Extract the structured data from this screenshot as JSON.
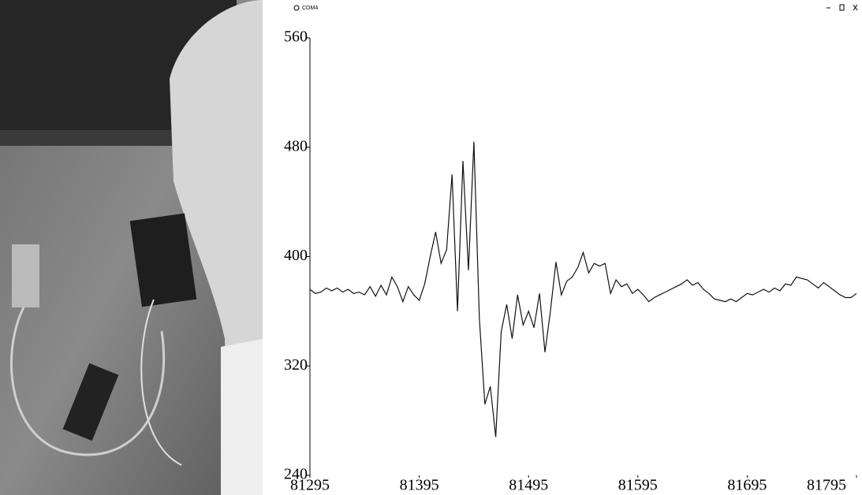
{
  "window": {
    "title": "COM4"
  },
  "chart_data": {
    "type": "line",
    "color": "#111111",
    "x": [
      81295,
      81300,
      81305,
      81310,
      81315,
      81320,
      81325,
      81330,
      81335,
      81340,
      81345,
      81350,
      81355,
      81360,
      81365,
      81370,
      81375,
      81380,
      81385,
      81390,
      81395,
      81400,
      81405,
      81410,
      81415,
      81420,
      81425,
      81430,
      81435,
      81440,
      81445,
      81450,
      81455,
      81460,
      81465,
      81470,
      81475,
      81480,
      81485,
      81490,
      81495,
      81500,
      81505,
      81510,
      81515,
      81520,
      81525,
      81530,
      81535,
      81540,
      81545,
      81550,
      81555,
      81560,
      81565,
      81570,
      81575,
      81580,
      81585,
      81590,
      81595,
      81600,
      81605,
      81610,
      81615,
      81620,
      81625,
      81630,
      81635,
      81640,
      81645,
      81650,
      81655,
      81660,
      81665,
      81670,
      81675,
      81680,
      81685,
      81690,
      81695,
      81700,
      81705,
      81710,
      81715,
      81720,
      81725,
      81730,
      81735,
      81740,
      81745,
      81750,
      81755,
      81760,
      81765,
      81770,
      81775,
      81780,
      81785,
      81790,
      81795
    ],
    "values": [
      376,
      373,
      374,
      377,
      375,
      377,
      374,
      376,
      373,
      374,
      372,
      378,
      371,
      379,
      372,
      385,
      378,
      367,
      378,
      372,
      368,
      380,
      400,
      418,
      395,
      405,
      460,
      360,
      470,
      390,
      484,
      355,
      292,
      305,
      268,
      345,
      365,
      340,
      372,
      350,
      360,
      348,
      373,
      330,
      360,
      396,
      372,
      382,
      385,
      392,
      403,
      388,
      395,
      393,
      395,
      373,
      383,
      378,
      380,
      373,
      376,
      372,
      367,
      370,
      372,
      374,
      376,
      378,
      380,
      383,
      379,
      381,
      376,
      373,
      369,
      368,
      367,
      369,
      367,
      370,
      373,
      372,
      374,
      376,
      374,
      377,
      375,
      380,
      379,
      385,
      384,
      383,
      380,
      377,
      381,
      378,
      375,
      372,
      370,
      370,
      373
    ],
    "xlim": [
      81295,
      81795
    ],
    "xticks": [
      81295,
      81395,
      81495,
      81595,
      81695,
      81795
    ],
    "ylim": [
      240,
      560
    ],
    "yticks": [
      240,
      320,
      400,
      480,
      560
    ],
    "grid": false
  }
}
